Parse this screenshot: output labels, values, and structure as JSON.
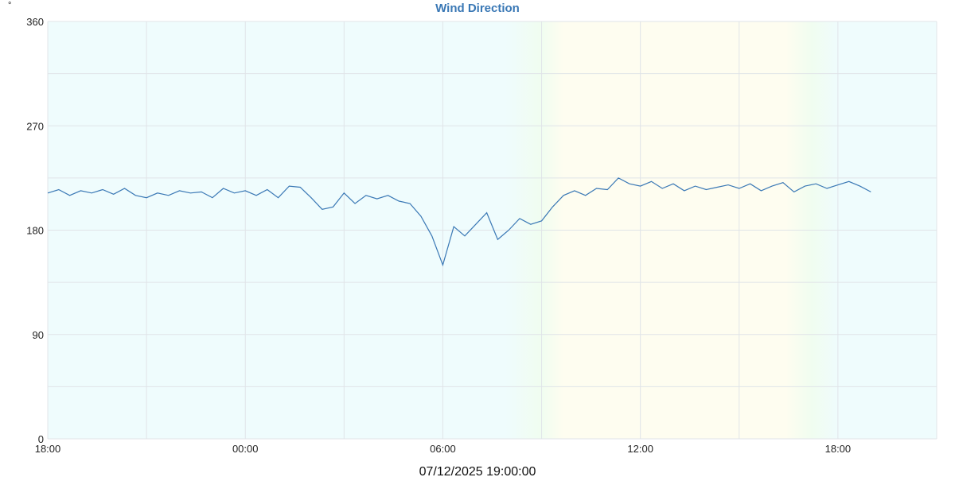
{
  "chart_data": {
    "type": "line",
    "title": "Wind Direction",
    "ylabel": "°",
    "xlabel": "07/12/2025 19:00:00",
    "ylim": [
      0,
      360
    ],
    "yticks": [
      0,
      90,
      180,
      270,
      360
    ],
    "xlim": [
      "2025-07-11T18:00",
      "2025-07-12T21:00"
    ],
    "xticks": [
      {
        "t": "2025-07-11T18:00",
        "label": "18:00"
      },
      {
        "t": "2025-07-12T00:00",
        "label": "00:00"
      },
      {
        "t": "2025-07-12T06:00",
        "label": "06:00"
      },
      {
        "t": "2025-07-12T12:00",
        "label": "12:00"
      },
      {
        "t": "2025-07-12T18:00",
        "label": "18:00"
      }
    ],
    "grid": true,
    "colors": {
      "line": "#3a78b5",
      "night": "#effcfd",
      "day": "#fefdf0",
      "twilight": "#f0fdf0"
    },
    "series": [
      {
        "points": [
          [
            "2025-07-11T18:00",
            212
          ],
          [
            "2025-07-11T18:20",
            215
          ],
          [
            "2025-07-11T18:40",
            210
          ],
          [
            "2025-07-11T19:00",
            214
          ],
          [
            "2025-07-11T19:20",
            212
          ],
          [
            "2025-07-11T19:40",
            215
          ],
          [
            "2025-07-11T20:00",
            211
          ],
          [
            "2025-07-11T20:20",
            216
          ],
          [
            "2025-07-11T20:40",
            210
          ],
          [
            "2025-07-11T21:00",
            208
          ],
          [
            "2025-07-11T21:20",
            212
          ],
          [
            "2025-07-11T21:40",
            210
          ],
          [
            "2025-07-11T22:00",
            214
          ],
          [
            "2025-07-11T22:20",
            212
          ],
          [
            "2025-07-11T22:40",
            213
          ],
          [
            "2025-07-11T23:00",
            208
          ],
          [
            "2025-07-11T23:20",
            216
          ],
          [
            "2025-07-11T23:40",
            212
          ],
          [
            "2025-07-12T00:00",
            214
          ],
          [
            "2025-07-12T00:20",
            210
          ],
          [
            "2025-07-12T00:40",
            215
          ],
          [
            "2025-07-12T01:00",
            208
          ],
          [
            "2025-07-12T01:20",
            218
          ],
          [
            "2025-07-12T01:40",
            217
          ],
          [
            "2025-07-12T02:00",
            208
          ],
          [
            "2025-07-12T02:20",
            198
          ],
          [
            "2025-07-12T02:40",
            200
          ],
          [
            "2025-07-12T03:00",
            212
          ],
          [
            "2025-07-12T03:20",
            203
          ],
          [
            "2025-07-12T03:40",
            210
          ],
          [
            "2025-07-12T04:00",
            207
          ],
          [
            "2025-07-12T04:20",
            210
          ],
          [
            "2025-07-12T04:40",
            205
          ],
          [
            "2025-07-12T05:00",
            203
          ],
          [
            "2025-07-12T05:20",
            192
          ],
          [
            "2025-07-12T05:40",
            175
          ],
          [
            "2025-07-12T06:00",
            150
          ],
          [
            "2025-07-12T06:20",
            183
          ],
          [
            "2025-07-12T06:40",
            175
          ],
          [
            "2025-07-12T07:00",
            185
          ],
          [
            "2025-07-12T07:20",
            195
          ],
          [
            "2025-07-12T07:40",
            172
          ],
          [
            "2025-07-12T08:00",
            180
          ],
          [
            "2025-07-12T08:20",
            190
          ],
          [
            "2025-07-12T08:40",
            185
          ],
          [
            "2025-07-12T09:00",
            188
          ],
          [
            "2025-07-12T09:20",
            200
          ],
          [
            "2025-07-12T09:40",
            210
          ],
          [
            "2025-07-12T10:00",
            214
          ],
          [
            "2025-07-12T10:20",
            210
          ],
          [
            "2025-07-12T10:40",
            216
          ],
          [
            "2025-07-12T11:00",
            215
          ],
          [
            "2025-07-12T11:20",
            225
          ],
          [
            "2025-07-12T11:40",
            220
          ],
          [
            "2025-07-12T12:00",
            218
          ],
          [
            "2025-07-12T12:20",
            222
          ],
          [
            "2025-07-12T12:40",
            216
          ],
          [
            "2025-07-12T13:00",
            220
          ],
          [
            "2025-07-12T13:20",
            214
          ],
          [
            "2025-07-12T13:40",
            218
          ],
          [
            "2025-07-12T14:00",
            215
          ],
          [
            "2025-07-12T14:20",
            217
          ],
          [
            "2025-07-12T14:40",
            219
          ],
          [
            "2025-07-12T15:00",
            216
          ],
          [
            "2025-07-12T15:20",
            220
          ],
          [
            "2025-07-12T15:40",
            214
          ],
          [
            "2025-07-12T16:00",
            218
          ],
          [
            "2025-07-12T16:20",
            221
          ],
          [
            "2025-07-12T16:40",
            213
          ],
          [
            "2025-07-12T17:00",
            218
          ],
          [
            "2025-07-12T17:20",
            220
          ],
          [
            "2025-07-12T17:40",
            216
          ],
          [
            "2025-07-12T18:00",
            219
          ],
          [
            "2025-07-12T18:20",
            222
          ],
          [
            "2025-07-12T18:40",
            218
          ],
          [
            "2025-07-12T19:00",
            213
          ]
        ]
      }
    ]
  }
}
